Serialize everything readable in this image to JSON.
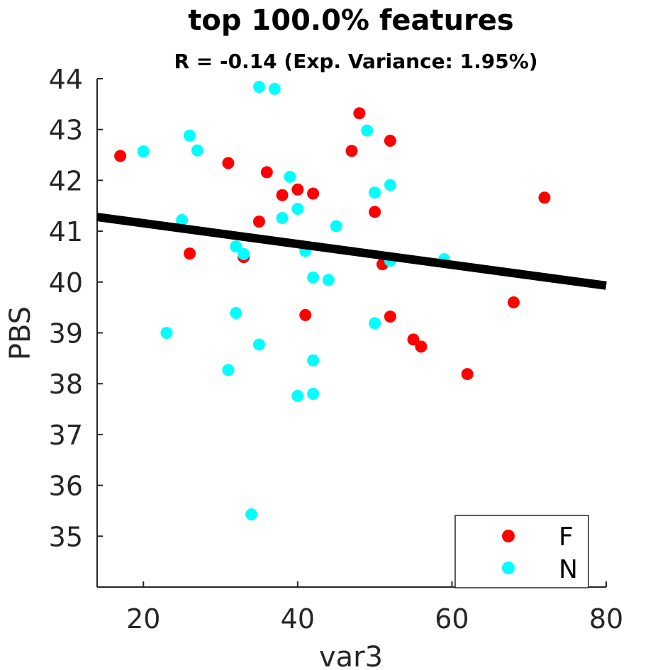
{
  "chart_data": {
    "type": "scatter",
    "title": "top 100.0% features",
    "subtitle": "R = -0.14 (Exp. Variance: 1.95%)",
    "xlabel": "var3",
    "ylabel": "PBS",
    "xlim": [
      14,
      80
    ],
    "ylim": [
      34,
      44
    ],
    "xticks": [
      20,
      40,
      60,
      80
    ],
    "yticks": [
      35,
      36,
      37,
      38,
      39,
      40,
      41,
      42,
      43,
      44
    ],
    "grid": false,
    "legend_position": "bottom-right",
    "fit_line": {
      "x": [
        14,
        80
      ],
      "y": [
        41.28,
        39.93
      ],
      "color": "#000000"
    },
    "series": [
      {
        "name": "F",
        "color": "#ff0000",
        "points": [
          [
            17,
            42.48
          ],
          [
            26,
            40.56
          ],
          [
            31,
            42.34
          ],
          [
            33,
            40.49
          ],
          [
            35,
            41.19
          ],
          [
            36,
            42.16
          ],
          [
            38,
            41.71
          ],
          [
            40,
            41.82
          ],
          [
            41,
            39.35
          ],
          [
            42,
            41.74
          ],
          [
            47,
            42.58
          ],
          [
            48,
            43.32
          ],
          [
            50,
            41.38
          ],
          [
            51,
            40.35
          ],
          [
            52,
            42.78
          ],
          [
            52,
            39.32
          ],
          [
            55,
            38.87
          ],
          [
            56,
            38.73
          ],
          [
            62,
            38.19
          ],
          [
            68,
            39.6
          ],
          [
            72,
            41.66
          ]
        ]
      },
      {
        "name": "N",
        "color": "#00ffff",
        "points": [
          [
            20,
            42.57
          ],
          [
            23,
            39.0
          ],
          [
            25,
            41.22
          ],
          [
            26,
            42.88
          ],
          [
            27,
            42.59
          ],
          [
            31,
            38.27
          ],
          [
            32,
            40.7
          ],
          [
            32,
            39.39
          ],
          [
            33,
            40.55
          ],
          [
            34,
            35.43
          ],
          [
            35,
            43.84
          ],
          [
            35,
            38.77
          ],
          [
            37,
            43.8
          ],
          [
            38,
            41.26
          ],
          [
            39,
            42.07
          ],
          [
            40,
            41.44
          ],
          [
            40,
            37.76
          ],
          [
            41,
            40.61
          ],
          [
            42,
            40.09
          ],
          [
            42,
            38.46
          ],
          [
            42,
            37.8
          ],
          [
            44,
            40.04
          ],
          [
            45,
            41.1
          ],
          [
            49,
            42.98
          ],
          [
            50,
            41.76
          ],
          [
            50,
            39.19
          ],
          [
            52,
            41.91
          ],
          [
            52,
            40.42
          ],
          [
            59,
            40.45
          ]
        ]
      }
    ]
  }
}
